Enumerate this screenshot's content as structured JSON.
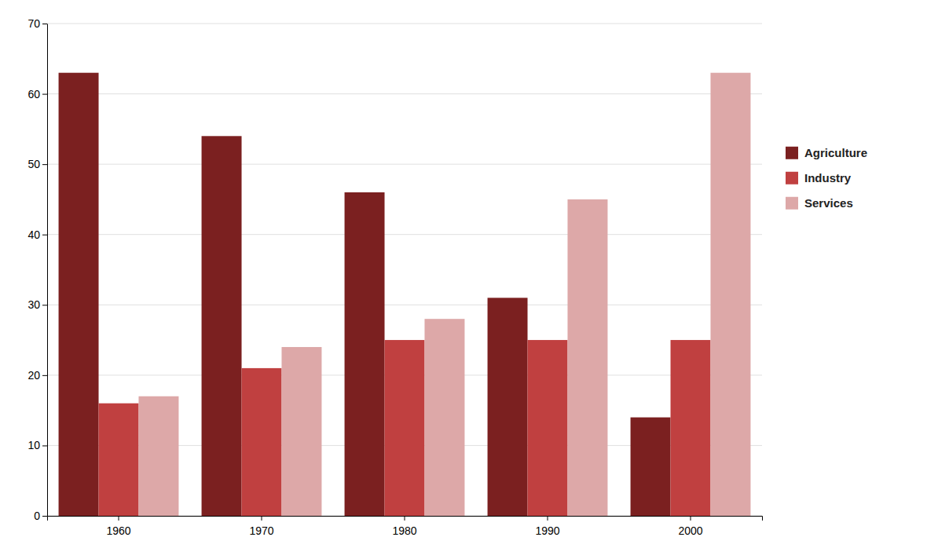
{
  "chart_data": {
    "type": "bar",
    "categories": [
      "1960",
      "1970",
      "1980",
      "1990",
      "2000"
    ],
    "series": [
      {
        "name": "Agriculture",
        "color": "#7B2020",
        "values": [
          63,
          54,
          46,
          31,
          14
        ]
      },
      {
        "name": "Industry",
        "color": "#C04040",
        "values": [
          16,
          21,
          25,
          25,
          25
        ]
      },
      {
        "name": "Services",
        "color": "#DDA8A8",
        "values": [
          17,
          24,
          28,
          45,
          63
        ]
      }
    ],
    "ylim": [
      0,
      70
    ],
    "yticks": [
      0,
      10,
      20,
      30,
      40,
      50,
      60,
      70
    ],
    "grid": true,
    "legend": "right"
  }
}
